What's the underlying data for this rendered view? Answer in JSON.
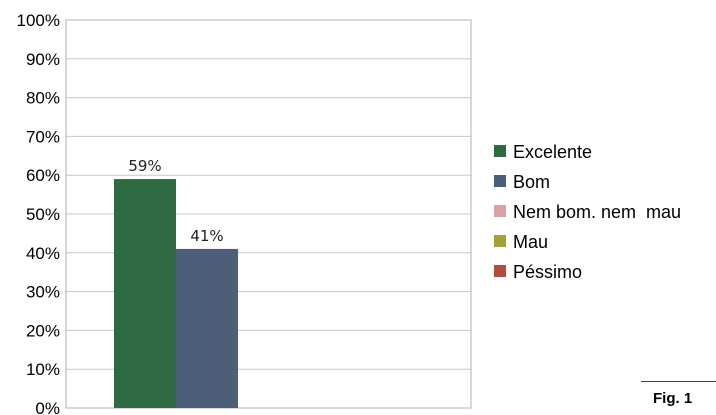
{
  "figure_caption": "Fig. 1",
  "chart_data": {
    "type": "bar",
    "categories": [
      ""
    ],
    "ylim": [
      0,
      100
    ],
    "yticks": [
      "0%",
      "10%",
      "20%",
      "30%",
      "40%",
      "50%",
      "60%",
      "70%",
      "80%",
      "90%",
      "100%"
    ],
    "grid": true,
    "legend_position": "right",
    "series": [
      {
        "name": "Excelente",
        "values": [
          59
        ],
        "label": "59%",
        "color": "#2e6b43"
      },
      {
        "name": "Bom",
        "values": [
          41
        ],
        "label": "41%",
        "color": "#4d5f78"
      },
      {
        "name": "Nem bom. nem  mau",
        "values": [
          0
        ],
        "label": "",
        "color": "#d9a3a3"
      },
      {
        "name": "Mau",
        "values": [
          0
        ],
        "label": "",
        "color": "#a3a23a"
      },
      {
        "name": "Péssimo",
        "values": [
          0
        ],
        "label": "",
        "color": "#b34c47"
      }
    ]
  }
}
